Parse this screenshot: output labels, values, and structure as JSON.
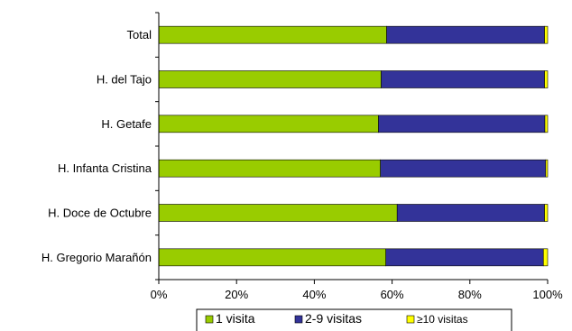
{
  "chart_data": {
    "type": "bar",
    "orientation": "horizontal",
    "stacked": true,
    "normalized": true,
    "categories": [
      "Total",
      "H. del Tajo",
      "H. Getafe",
      "H. Infanta Cristina",
      "H. Doce de Octubre",
      "H. Gregorio Marañón"
    ],
    "series": [
      {
        "name": "1 visita",
        "color": "#99cc00",
        "values": [
          58.6,
          57.2,
          56.5,
          57.0,
          61.3,
          58.4
        ]
      },
      {
        "name": "2-9 visitas",
        "color": "#333399",
        "values": [
          40.6,
          42.0,
          42.8,
          42.5,
          37.9,
          40.5
        ]
      },
      {
        "name": "≥10 visitas",
        "color": "#ffff00",
        "values": [
          0.8,
          0.8,
          0.7,
          0.5,
          0.8,
          1.1
        ]
      }
    ],
    "xlim": [
      0,
      100
    ],
    "xticks": [
      "0%",
      "20%",
      "40%",
      "60%",
      "80%",
      "100%"
    ],
    "xlabel": "",
    "ylabel": "",
    "title": "",
    "grid": false,
    "legend_position": "bottom"
  }
}
